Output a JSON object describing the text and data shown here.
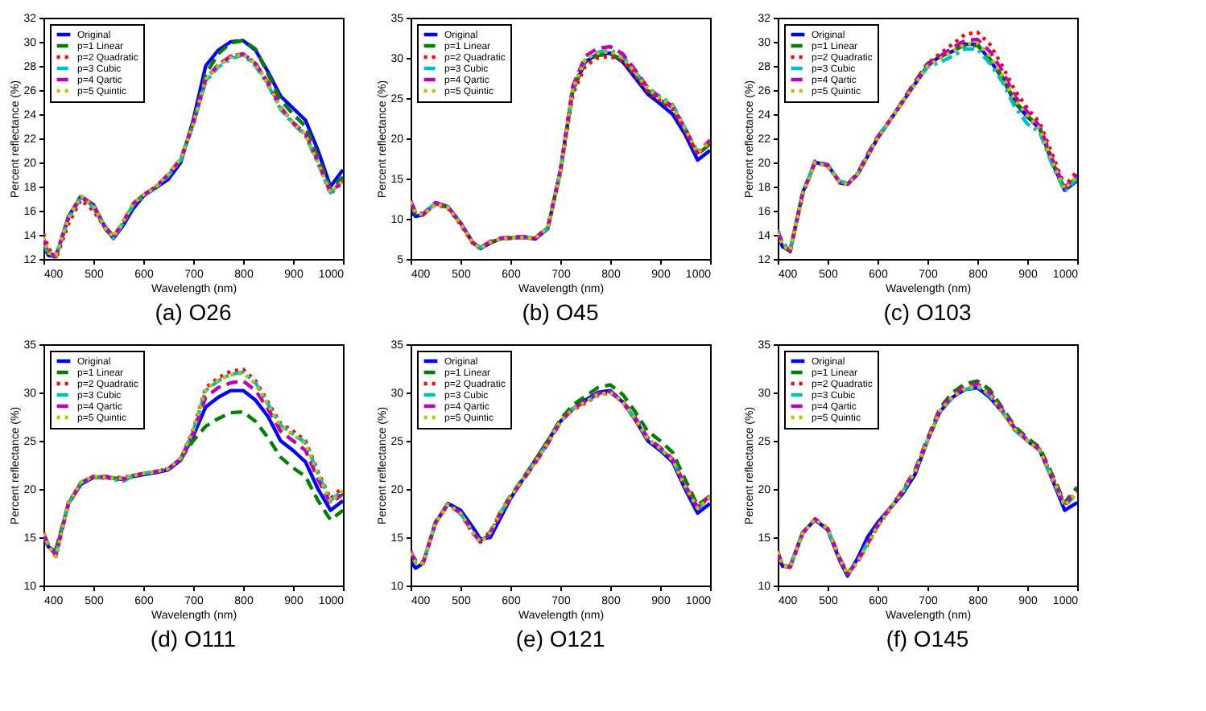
{
  "chart_data": [
    {
      "type": "line",
      "title": "(a) O26",
      "xlabel": "Wavelength (nm)",
      "ylabel": "Percent reflectance (%)",
      "legend": "top left",
      "x": [
        400,
        410,
        425,
        450,
        475,
        500,
        525,
        540,
        560,
        580,
        600,
        625,
        650,
        675,
        700,
        725,
        750,
        775,
        800,
        825,
        850,
        875,
        900,
        925,
        950,
        975,
        1000
      ],
      "xlim": [
        400,
        1000
      ],
      "xticks": [
        400,
        500,
        600,
        700,
        800,
        900,
        1000
      ],
      "ylim": [
        12,
        32
      ],
      "yticks": [
        12,
        14,
        16,
        18,
        20,
        22,
        24,
        26,
        28,
        30,
        32
      ],
      "series": [
        {
          "name": "Original",
          "color": "#0000ff",
          "line_style": "solid",
          "values": [
            13.0,
            12.3,
            12.2,
            15.5,
            17.2,
            16.5,
            14.5,
            13.7,
            14.8,
            16.2,
            17.2,
            17.9,
            18.6,
            20.0,
            23.5,
            28.0,
            29.3,
            30.0,
            30.1,
            29.3,
            27.5,
            25.5,
            24.5,
            23.5,
            21.0,
            18.0,
            19.4
          ]
        },
        {
          "name": "p=1 Linear",
          "color": "#008000",
          "line_style": "dashed",
          "values": [
            13.3,
            12.4,
            12.2,
            15.4,
            17.2,
            16.4,
            14.6,
            13.9,
            15.0,
            16.5,
            17.3,
            17.9,
            18.9,
            20.2,
            23.3,
            27.3,
            29.0,
            29.9,
            30.1,
            29.4,
            27.3,
            25.2,
            24.0,
            23.0,
            20.5,
            17.8,
            18.8
          ]
        },
        {
          "name": "p=2 Quadratic",
          "color": "#ff0000",
          "line_style": "dotted",
          "values": [
            14.1,
            12.9,
            12.0,
            14.9,
            16.9,
            16.0,
            14.5,
            13.8,
            15.1,
            16.6,
            17.3,
            18.0,
            19.0,
            20.3,
            23.2,
            26.8,
            28.1,
            28.8,
            29.0,
            28.2,
            26.5,
            24.5,
            23.3,
            22.3,
            20.0,
            17.4,
            18.4
          ]
        },
        {
          "name": "p=3 Cubic",
          "color": "#00bfbf",
          "line_style": "dashdot",
          "values": [
            13.5,
            12.4,
            12.3,
            15.3,
            17.1,
            16.3,
            14.4,
            13.7,
            15.0,
            16.5,
            17.2,
            17.9,
            18.9,
            20.2,
            23.1,
            26.7,
            27.9,
            28.6,
            28.9,
            28.0,
            26.4,
            24.4,
            23.2,
            22.2,
            19.9,
            17.5,
            18.3
          ]
        },
        {
          "name": "p=4 Qartic",
          "color": "#bf00bf",
          "line_style": "dashed",
          "values": [
            13.7,
            12.5,
            12.3,
            15.4,
            17.2,
            16.4,
            14.5,
            13.8,
            15.1,
            16.6,
            17.3,
            18.0,
            19.0,
            20.3,
            23.2,
            26.9,
            28.1,
            28.8,
            29.0,
            28.2,
            26.6,
            24.6,
            23.3,
            22.4,
            20.1,
            17.5,
            18.5
          ]
        },
        {
          "name": "p=5 Quintic",
          "color": "#bfbf00",
          "line_style": "dotted",
          "values": [
            13.8,
            12.5,
            12.3,
            15.4,
            17.2,
            16.4,
            14.5,
            13.8,
            15.1,
            16.6,
            17.3,
            18.0,
            19.0,
            20.3,
            23.2,
            26.9,
            28.0,
            28.7,
            29.0,
            28.1,
            26.5,
            24.5,
            23.3,
            22.3,
            20.0,
            17.5,
            18.5
          ]
        }
      ]
    },
    {
      "type": "line",
      "title": "(b) O45",
      "xlabel": "Wavelength (nm)",
      "ylabel": "Percent reflectance (%)",
      "legend": "top left",
      "x": [
        400,
        410,
        425,
        450,
        475,
        500,
        525,
        540,
        560,
        580,
        600,
        625,
        650,
        675,
        700,
        725,
        750,
        775,
        800,
        825,
        850,
        875,
        900,
        925,
        950,
        975,
        1000
      ],
      "xlim": [
        400,
        1000
      ],
      "xticks": [
        400,
        500,
        600,
        700,
        800,
        900,
        1000
      ],
      "ylim": [
        5,
        35
      ],
      "yticks": [
        5,
        10,
        15,
        20,
        25,
        30,
        35
      ],
      "series": [
        {
          "name": "Original",
          "color": "#0000ff",
          "line_style": "solid",
          "values": [
            11.0,
            10.3,
            10.5,
            12.0,
            11.5,
            9.5,
            7.0,
            6.3,
            7.0,
            7.5,
            7.6,
            7.7,
            7.5,
            8.8,
            16.0,
            26.0,
            29.5,
            30.5,
            30.6,
            29.5,
            27.5,
            25.5,
            24.3,
            23.0,
            20.5,
            17.3,
            18.5
          ]
        },
        {
          "name": "p=1 Linear",
          "color": "#008000",
          "line_style": "dashed",
          "values": [
            11.8,
            10.6,
            10.5,
            11.9,
            11.4,
            9.4,
            7.0,
            6.4,
            7.1,
            7.5,
            7.6,
            7.7,
            7.6,
            8.9,
            15.8,
            26.0,
            29.6,
            30.3,
            30.5,
            29.8,
            28.0,
            26.0,
            24.8,
            23.8,
            21.0,
            18.0,
            19.3
          ]
        },
        {
          "name": "p=2 Quadratic",
          "color": "#ff0000",
          "line_style": "dotted",
          "values": [
            12.0,
            10.7,
            10.5,
            11.8,
            11.3,
            9.3,
            6.9,
            6.3,
            7.1,
            7.5,
            7.6,
            7.7,
            7.6,
            8.9,
            15.6,
            25.5,
            29.0,
            30.0,
            30.2,
            29.6,
            27.8,
            25.8,
            24.7,
            23.6,
            20.9,
            18.0,
            19.5
          ]
        },
        {
          "name": "p=3 Cubic",
          "color": "#00bfbf",
          "line_style": "dashdot",
          "values": [
            12.2,
            10.8,
            10.6,
            12.0,
            11.5,
            9.5,
            7.0,
            6.4,
            7.1,
            7.5,
            7.6,
            7.7,
            7.6,
            8.9,
            15.8,
            26.2,
            29.8,
            30.7,
            31.0,
            30.2,
            28.3,
            26.3,
            25.2,
            24.2,
            21.3,
            18.3,
            19.6
          ]
        },
        {
          "name": "p=4 Qartic",
          "color": "#bf00bf",
          "line_style": "dashed",
          "values": [
            12.3,
            10.8,
            10.6,
            12.0,
            11.5,
            9.5,
            7.0,
            6.4,
            7.2,
            7.6,
            7.7,
            7.8,
            7.6,
            9.0,
            16.0,
            26.5,
            30.2,
            31.2,
            31.4,
            30.5,
            28.5,
            26.3,
            25.0,
            24.0,
            21.2,
            18.2,
            19.8
          ]
        },
        {
          "name": "p=5 Quintic",
          "color": "#bfbf00",
          "line_style": "dotted",
          "values": [
            12.1,
            10.7,
            10.5,
            11.9,
            11.4,
            9.4,
            7.0,
            6.3,
            7.1,
            7.5,
            7.6,
            7.7,
            7.6,
            8.9,
            15.9,
            26.2,
            29.9,
            30.6,
            30.8,
            30.0,
            28.2,
            26.2,
            25.0,
            24.0,
            21.2,
            18.2,
            19.6
          ]
        }
      ]
    },
    {
      "type": "line",
      "title": "(c) O103",
      "xlabel": "Wavelength (nm)",
      "ylabel": "Percent reflectance (%)",
      "legend": "top left",
      "x": [
        400,
        410,
        425,
        450,
        475,
        500,
        525,
        540,
        560,
        580,
        600,
        625,
        650,
        675,
        700,
        725,
        750,
        775,
        800,
        825,
        850,
        875,
        900,
        925,
        950,
        975,
        1000
      ],
      "xlim": [
        400,
        1000
      ],
      "xticks": [
        400,
        500,
        600,
        700,
        800,
        900,
        1000
      ],
      "ylim": [
        12,
        32
      ],
      "yticks": [
        12,
        14,
        16,
        18,
        20,
        22,
        24,
        26,
        28,
        30,
        32
      ],
      "series": [
        {
          "name": "Original",
          "color": "#0000ff",
          "line_style": "solid",
          "values": [
            14.0,
            13.0,
            12.7,
            17.5,
            20.0,
            19.8,
            18.3,
            18.2,
            19.0,
            20.5,
            22.0,
            23.5,
            25.0,
            26.5,
            28.0,
            28.8,
            29.2,
            29.8,
            29.8,
            28.5,
            27.0,
            25.0,
            23.8,
            22.8,
            20.0,
            17.7,
            18.5
          ]
        },
        {
          "name": "p=1 Linear",
          "color": "#008000",
          "line_style": "dashed",
          "values": [
            14.2,
            13.1,
            12.6,
            17.4,
            20.1,
            19.7,
            18.4,
            18.2,
            19.1,
            20.7,
            22.1,
            23.5,
            25.1,
            26.7,
            28.2,
            28.7,
            29.3,
            29.7,
            29.7,
            28.6,
            27.1,
            25.1,
            23.9,
            22.9,
            20.1,
            17.8,
            18.8
          ]
        },
        {
          "name": "p=2 Quadratic",
          "color": "#ff0000",
          "line_style": "dotted",
          "values": [
            14.3,
            13.2,
            12.7,
            17.3,
            20.0,
            19.7,
            18.3,
            18.2,
            19.0,
            20.6,
            22.0,
            23.5,
            25.0,
            26.6,
            28.2,
            29.0,
            29.8,
            30.6,
            30.8,
            29.8,
            28.0,
            26.0,
            24.5,
            23.3,
            20.7,
            18.0,
            19.3
          ]
        },
        {
          "name": "p=3 Cubic",
          "color": "#00bfbf",
          "line_style": "dashdot",
          "values": [
            14.4,
            13.3,
            12.8,
            17.4,
            20.1,
            19.8,
            18.4,
            18.3,
            19.1,
            20.6,
            22.1,
            23.5,
            25.0,
            26.5,
            27.9,
            28.3,
            28.8,
            29.4,
            29.4,
            28.2,
            26.7,
            24.6,
            23.2,
            22.5,
            19.8,
            17.6,
            18.7
          ]
        },
        {
          "name": "p=4 Qartic",
          "color": "#bf00bf",
          "line_style": "dashed",
          "values": [
            14.3,
            13.2,
            12.7,
            17.4,
            20.1,
            19.8,
            18.3,
            18.2,
            19.1,
            20.6,
            22.1,
            23.5,
            25.0,
            26.6,
            28.1,
            28.8,
            29.5,
            30.1,
            30.2,
            29.2,
            27.6,
            25.5,
            24.2,
            23.0,
            20.3,
            17.9,
            19.0
          ]
        },
        {
          "name": "p=5 Quintic",
          "color": "#bfbf00",
          "line_style": "dotted",
          "values": [
            14.2,
            13.1,
            12.7,
            17.4,
            20.0,
            19.7,
            18.3,
            18.2,
            19.0,
            20.5,
            22.0,
            23.5,
            25.0,
            26.5,
            28.0,
            28.6,
            29.2,
            29.8,
            29.9,
            28.8,
            27.2,
            25.2,
            23.9,
            22.8,
            20.1,
            17.8,
            18.9
          ]
        }
      ]
    },
    {
      "type": "line",
      "title": "(d) O111",
      "xlabel": "Wavelength (nm)",
      "ylabel": "Percent reflectance (%)",
      "legend": "top left",
      "x": [
        400,
        410,
        425,
        450,
        475,
        500,
        525,
        540,
        560,
        580,
        600,
        625,
        650,
        675,
        700,
        725,
        750,
        775,
        800,
        825,
        850,
        875,
        900,
        925,
        950,
        975,
        1000
      ],
      "xlim": [
        400,
        1000
      ],
      "xticks": [
        400,
        500,
        600,
        700,
        800,
        900,
        1000
      ],
      "ylim": [
        10,
        35
      ],
      "yticks": [
        10,
        15,
        20,
        25,
        30,
        35
      ],
      "series": [
        {
          "name": "Original",
          "color": "#0000ff",
          "line_style": "solid",
          "values": [
            15.0,
            14.0,
            13.5,
            18.5,
            20.5,
            21.2,
            21.3,
            21.1,
            21.0,
            21.3,
            21.5,
            21.7,
            22.0,
            23.0,
            25.5,
            28.5,
            29.5,
            30.2,
            30.2,
            29.2,
            27.5,
            25.0,
            24.0,
            22.8,
            20.0,
            17.8,
            18.8
          ]
        },
        {
          "name": "p=1 Linear",
          "color": "#008000",
          "line_style": "dashed",
          "values": [
            15.2,
            14.2,
            13.8,
            18.4,
            20.6,
            21.2,
            21.2,
            21.1,
            21.1,
            21.4,
            21.6,
            21.8,
            22.1,
            23.1,
            25.0,
            26.5,
            27.3,
            27.9,
            28.0,
            27.0,
            25.3,
            23.3,
            22.2,
            21.3,
            18.8,
            16.8,
            17.8
          ]
        },
        {
          "name": "p=2 Quadratic",
          "color": "#ff0000",
          "line_style": "dotted",
          "values": [
            15.5,
            14.2,
            13.0,
            18.6,
            20.7,
            21.3,
            21.1,
            21.2,
            21.2,
            21.4,
            21.6,
            21.8,
            22.1,
            23.2,
            26.2,
            30.5,
            31.5,
            32.2,
            32.4,
            31.2,
            29.0,
            26.8,
            26.0,
            25.0,
            21.8,
            19.0,
            20.2
          ]
        },
        {
          "name": "p=3 Cubic",
          "color": "#00bfbf",
          "line_style": "dashdot",
          "values": [
            15.3,
            14.1,
            13.2,
            18.5,
            20.7,
            21.3,
            21.2,
            21.0,
            20.8,
            21.4,
            21.6,
            21.8,
            22.1,
            23.2,
            26.0,
            30.2,
            31.2,
            31.9,
            32.1,
            31.0,
            28.8,
            26.6,
            25.7,
            24.8,
            21.6,
            18.8,
            19.9
          ]
        },
        {
          "name": "p=4 Qartic",
          "color": "#bf00bf",
          "line_style": "dashed",
          "values": [
            15.4,
            14.2,
            13.1,
            18.5,
            20.6,
            21.3,
            21.2,
            21.1,
            21.0,
            21.4,
            21.6,
            21.8,
            22.1,
            23.1,
            25.8,
            29.5,
            30.5,
            31.0,
            31.2,
            30.2,
            28.3,
            26.0,
            25.0,
            24.0,
            21.0,
            18.5,
            19.5
          ]
        },
        {
          "name": "p=5 Quintic",
          "color": "#bfbf00",
          "line_style": "dotted",
          "values": [
            15.4,
            14.1,
            13.0,
            18.5,
            20.7,
            21.3,
            21.2,
            21.1,
            21.1,
            21.4,
            21.6,
            21.8,
            22.1,
            23.2,
            26.1,
            30.3,
            31.3,
            31.8,
            32.0,
            30.9,
            28.7,
            26.5,
            25.6,
            24.7,
            21.5,
            18.7,
            19.8
          ]
        }
      ]
    },
    {
      "type": "line",
      "title": "(e) O121",
      "xlabel": "Wavelength (nm)",
      "ylabel": "Percent reflectance (%)",
      "legend": "top left",
      "x": [
        400,
        410,
        425,
        450,
        475,
        500,
        525,
        540,
        560,
        580,
        600,
        625,
        650,
        675,
        700,
        725,
        750,
        775,
        800,
        825,
        850,
        875,
        900,
        925,
        950,
        975,
        1000
      ],
      "xlim": [
        400,
        1000
      ],
      "xticks": [
        400,
        500,
        600,
        700,
        800,
        900,
        1000
      ],
      "ylim": [
        10,
        35
      ],
      "yticks": [
        10,
        15,
        20,
        25,
        30,
        35
      ],
      "series": [
        {
          "name": "Original",
          "color": "#0000ff",
          "line_style": "solid",
          "values": [
            12.5,
            11.8,
            12.3,
            16.5,
            18.5,
            17.8,
            16.0,
            14.8,
            15.0,
            17.0,
            19.0,
            21.0,
            23.0,
            25.0,
            27.0,
            28.3,
            29.2,
            30.0,
            30.2,
            29.0,
            27.2,
            25.0,
            24.0,
            22.8,
            20.0,
            17.5,
            18.5
          ]
        },
        {
          "name": "p=1 Linear",
          "color": "#008000",
          "line_style": "dashed",
          "values": [
            13.3,
            12.4,
            12.3,
            16.6,
            18.5,
            17.5,
            15.5,
            14.6,
            15.6,
            17.6,
            19.3,
            21.1,
            23.0,
            25.0,
            27.2,
            28.7,
            29.6,
            30.5,
            30.8,
            29.8,
            28.0,
            26.0,
            25.0,
            23.8,
            21.0,
            18.3,
            19.3
          ]
        },
        {
          "name": "p=2 Quadratic",
          "color": "#ff0000",
          "line_style": "dotted",
          "values": [
            13.6,
            12.6,
            12.4,
            16.5,
            18.4,
            17.4,
            15.4,
            14.5,
            15.5,
            17.5,
            19.2,
            21.0,
            22.8,
            24.8,
            27.0,
            28.2,
            28.9,
            29.7,
            30.0,
            29.0,
            27.3,
            25.2,
            24.2,
            23.0,
            20.3,
            18.0,
            19.2
          ]
        },
        {
          "name": "p=3 Cubic",
          "color": "#00bfbf",
          "line_style": "dashdot",
          "values": [
            13.5,
            12.5,
            12.3,
            16.5,
            18.4,
            17.5,
            15.5,
            14.5,
            15.5,
            17.5,
            19.2,
            21.0,
            22.8,
            24.8,
            27.0,
            28.3,
            29.0,
            29.8,
            30.0,
            29.0,
            27.3,
            25.2,
            24.2,
            23.0,
            20.3,
            18.0,
            19.1
          ]
        },
        {
          "name": "p=4 Qartic",
          "color": "#bf00bf",
          "line_style": "dashed",
          "values": [
            13.5,
            12.5,
            12.3,
            16.5,
            18.4,
            17.5,
            15.5,
            14.5,
            15.4,
            17.4,
            19.1,
            20.9,
            22.7,
            24.7,
            26.9,
            28.3,
            29.1,
            29.9,
            30.1,
            29.1,
            27.4,
            25.3,
            24.3,
            23.1,
            20.4,
            18.1,
            19.3
          ]
        },
        {
          "name": "p=5 Quintic",
          "color": "#bfbf00",
          "line_style": "dotted",
          "values": [
            13.4,
            12.4,
            12.3,
            16.5,
            18.4,
            17.5,
            15.5,
            14.5,
            15.5,
            17.5,
            19.2,
            21.0,
            22.8,
            24.8,
            27.0,
            28.3,
            29.0,
            29.8,
            30.0,
            29.0,
            27.3,
            25.2,
            24.2,
            23.0,
            20.3,
            18.0,
            19.2
          ]
        }
      ]
    },
    {
      "type": "line",
      "title": "(f) O145",
      "xlabel": "Wavelength (nm)",
      "ylabel": "Percent reflectance (%)",
      "legend": "top left",
      "x": [
        400,
        410,
        425,
        450,
        475,
        500,
        525,
        540,
        560,
        580,
        600,
        625,
        650,
        675,
        700,
        725,
        750,
        775,
        800,
        825,
        850,
        875,
        900,
        925,
        950,
        975,
        1000
      ],
      "xlim": [
        400,
        1000
      ],
      "xticks": [
        400,
        500,
        600,
        700,
        800,
        900,
        1000
      ],
      "ylim": [
        10,
        35
      ],
      "yticks": [
        10,
        15,
        20,
        25,
        30,
        35
      ],
      "series": [
        {
          "name": "Original",
          "color": "#0000ff",
          "line_style": "solid",
          "values": [
            13.0,
            12.0,
            12.0,
            15.5,
            16.8,
            15.8,
            12.5,
            11.0,
            12.8,
            15.0,
            16.5,
            18.0,
            19.5,
            21.5,
            25.0,
            28.0,
            29.5,
            30.3,
            30.5,
            29.5,
            28.0,
            26.3,
            25.0,
            24.0,
            21.0,
            17.8,
            18.6
          ]
        },
        {
          "name": "p=1 Linear",
          "color": "#008000",
          "line_style": "dashed",
          "values": [
            13.5,
            12.0,
            11.9,
            15.4,
            16.9,
            15.9,
            12.8,
            11.3,
            12.5,
            14.3,
            16.2,
            18.0,
            19.8,
            22.0,
            25.2,
            28.4,
            30.0,
            30.9,
            31.2,
            30.3,
            28.4,
            26.5,
            25.3,
            24.3,
            21.5,
            18.6,
            20.2
          ]
        },
        {
          "name": "p=2 Quadratic",
          "color": "#ff0000",
          "line_style": "dotted",
          "values": [
            13.6,
            12.1,
            11.9,
            15.4,
            16.9,
            15.9,
            12.7,
            11.2,
            12.4,
            14.2,
            16.1,
            17.9,
            19.7,
            21.8,
            25.0,
            28.0,
            29.5,
            30.4,
            30.7,
            29.8,
            28.0,
            26.1,
            25.0,
            24.0,
            21.2,
            18.3,
            19.8
          ]
        },
        {
          "name": "p=3 Cubic",
          "color": "#00bfbf",
          "line_style": "dashdot",
          "values": [
            13.5,
            12.1,
            11.9,
            15.4,
            16.9,
            15.9,
            12.7,
            11.2,
            12.5,
            14.4,
            16.2,
            18.0,
            19.7,
            21.8,
            25.0,
            28.0,
            29.5,
            30.3,
            30.6,
            29.7,
            28.0,
            26.1,
            25.0,
            24.0,
            21.1,
            18.2,
            19.6
          ]
        },
        {
          "name": "p=4 Qartic",
          "color": "#bf00bf",
          "line_style": "dashed",
          "values": [
            13.4,
            12.0,
            11.9,
            15.4,
            16.9,
            15.9,
            12.7,
            11.2,
            12.5,
            14.4,
            16.2,
            18.0,
            19.8,
            21.9,
            25.1,
            28.2,
            29.7,
            30.6,
            30.9,
            30.0,
            28.2,
            26.3,
            25.1,
            24.1,
            21.3,
            18.4,
            19.8
          ]
        },
        {
          "name": "p=5 Quintic",
          "color": "#bfbf00",
          "line_style": "dotted",
          "values": [
            13.5,
            12.1,
            11.9,
            15.4,
            16.9,
            15.9,
            12.7,
            11.2,
            12.4,
            14.3,
            16.1,
            17.9,
            19.7,
            21.8,
            25.0,
            28.1,
            29.6,
            30.4,
            30.7,
            29.8,
            28.0,
            26.2,
            25.0,
            24.0,
            21.2,
            18.3,
            19.7
          ]
        }
      ]
    }
  ]
}
